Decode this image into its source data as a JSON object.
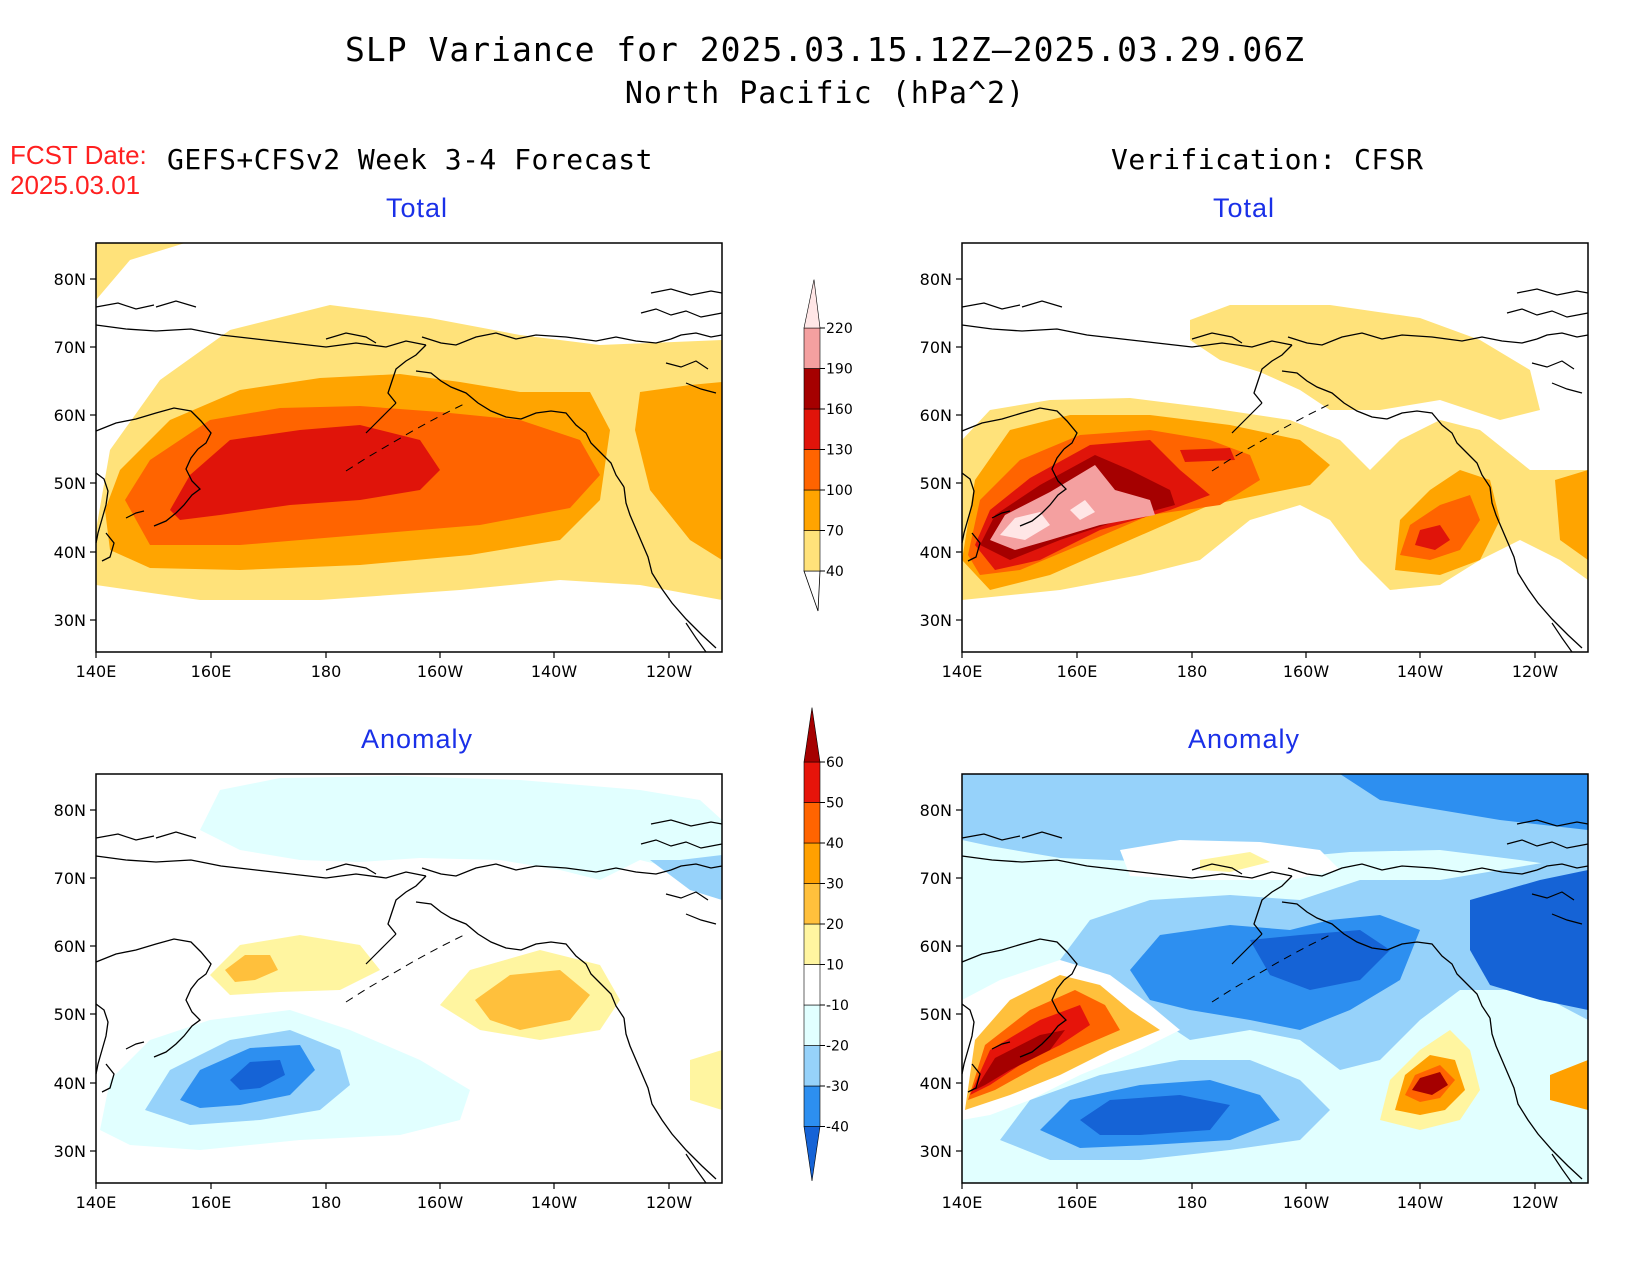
{
  "title": {
    "line1": "SLP Variance for 2025.03.15.12Z—2025.03.29.06Z",
    "line2": "North Pacific (hPa^2)"
  },
  "fcst_label": {
    "line1": "FCST Date:",
    "line2": "2025.03.01"
  },
  "left_header": "GEFS+CFSv2 Week 3-4 Forecast",
  "right_header": "Verification: CFSR",
  "panels": {
    "forecast_total": {
      "label": "Total"
    },
    "verify_total": {
      "label": "Total"
    },
    "forecast_anomaly": {
      "label": "Anomaly"
    },
    "verify_anomaly": {
      "label": "Anomaly"
    }
  },
  "axes": {
    "x_ticks": [
      "140E",
      "160E",
      "180",
      "160W",
      "140W",
      "120W"
    ],
    "y_ticks": [
      "80N",
      "70N",
      "60N",
      "50N",
      "40N",
      "30N"
    ]
  },
  "total_colorbar": {
    "levels": [
      "40",
      "70",
      "100",
      "130",
      "160",
      "190",
      "220"
    ],
    "colors": [
      "#ffe27a",
      "#ffa400",
      "#ff6400",
      "#e0140a",
      "#a50000",
      "#f4a0a0",
      "#ffe6e6"
    ]
  },
  "anomaly_colorbar": {
    "levels": [
      "-40",
      "-30",
      "-20",
      "-10",
      "10",
      "20",
      "30",
      "40",
      "50",
      "60"
    ],
    "colors": [
      "#1563d6",
      "#2d8ff0",
      "#96d2fa",
      "#e1ffff",
      "#ffffff",
      "#fff5a0",
      "#ffc03c",
      "#ffa000",
      "#ff6400",
      "#e6140a",
      "#a50000"
    ]
  }
}
